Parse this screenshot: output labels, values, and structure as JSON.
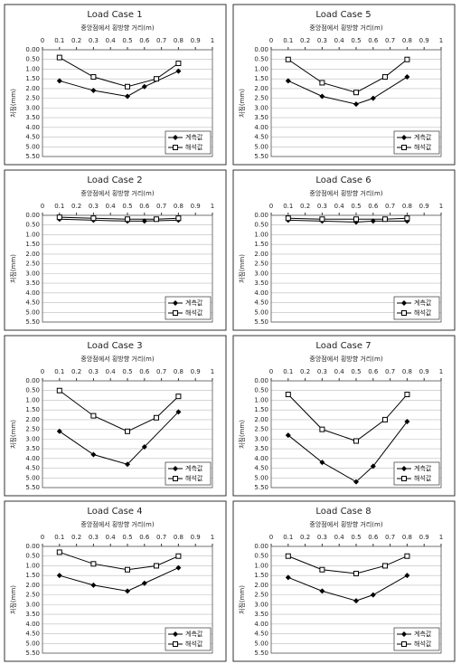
{
  "chart_data": [
    {
      "type": "line",
      "title": "Load Case 1",
      "x_label": "중앙점에서 횡방향 거리(m)",
      "y_label": "처짐(mm)",
      "xlim": [
        0,
        1
      ],
      "xticks": [
        0,
        0.1,
        0.2,
        0.3,
        0.4,
        0.5,
        0.6,
        0.7,
        0.8,
        0.9,
        1
      ],
      "ylim": [
        0,
        5.5
      ],
      "y_inverted": true,
      "grid": true,
      "legend": "lower right",
      "yticks": [
        {
          "value": 0,
          "label": "0.00"
        },
        {
          "value": 0.5,
          "label": "0.50"
        },
        {
          "value": 1,
          "label": "1.00"
        },
        {
          "value": 1.5,
          "label": "1.50"
        },
        {
          "value": 2,
          "label": "2.00"
        },
        {
          "value": 2.5,
          "label": "2.50"
        },
        {
          "value": 3,
          "label": "3.00"
        },
        {
          "value": 3.5,
          "label": "3.50"
        },
        {
          "value": 4,
          "label": "4.00"
        },
        {
          "value": 4.5,
          "label": "4.50"
        },
        {
          "value": 5,
          "label": "5.00"
        },
        {
          "value": 5.5,
          "label": "5.50"
        }
      ],
      "series": [
        {
          "name": "계측값",
          "color": "#000000",
          "marker": "diamond",
          "x": [
            0.1,
            0.3,
            0.5,
            0.6,
            0.8
          ],
          "values": [
            1.6,
            2.1,
            2.4,
            1.9,
            1.1
          ]
        },
        {
          "name": "해석값",
          "color": "#000000",
          "marker": "square",
          "x": [
            0.1,
            0.3,
            0.5,
            0.67,
            0.8
          ],
          "values": [
            0.4,
            1.4,
            1.9,
            1.5,
            0.7
          ]
        }
      ]
    },
    {
      "type": "line",
      "title": "Load Case 5",
      "x_label": "중앙점에서 횡방향 거리(m)",
      "y_label": "처짐(mm)",
      "xlim": [
        0,
        1
      ],
      "xticks": [
        0,
        0.1,
        0.2,
        0.3,
        0.4,
        0.5,
        0.6,
        0.7,
        0.8,
        0.9,
        1
      ],
      "ylim": [
        0,
        5.5
      ],
      "y_inverted": true,
      "grid": true,
      "legend": "lower right",
      "yticks": [
        {
          "value": 0,
          "label": "0.00"
        },
        {
          "value": 0.5,
          "label": "0.50"
        },
        {
          "value": 1,
          "label": "1.00"
        },
        {
          "value": 1.5,
          "label": "1.50"
        },
        {
          "value": 2,
          "label": "2.00"
        },
        {
          "value": 2.5,
          "label": "2.50"
        },
        {
          "value": 3,
          "label": "3.00"
        },
        {
          "value": 3.5,
          "label": "3.50"
        },
        {
          "value": 4,
          "label": "4.00"
        },
        {
          "value": 4.5,
          "label": "4.50"
        },
        {
          "value": 5,
          "label": "5.00"
        },
        {
          "value": 5.5,
          "label": "5.50"
        }
      ],
      "series": [
        {
          "name": "계측값",
          "color": "#000000",
          "marker": "diamond",
          "x": [
            0.1,
            0.3,
            0.5,
            0.6,
            0.8
          ],
          "values": [
            1.6,
            2.4,
            2.8,
            2.5,
            1.4
          ]
        },
        {
          "name": "해석값",
          "color": "#000000",
          "marker": "square",
          "x": [
            0.1,
            0.3,
            0.5,
            0.67,
            0.8
          ],
          "values": [
            0.5,
            1.7,
            2.2,
            1.4,
            0.5
          ]
        }
      ]
    },
    {
      "type": "line",
      "title": "Load Case 2",
      "x_label": "중앙점에서 횡방향 거리(m)",
      "y_label": "처짐(mm)",
      "xlim": [
        0,
        1
      ],
      "xticks": [
        0,
        0.1,
        0.2,
        0.3,
        0.4,
        0.5,
        0.6,
        0.7,
        0.8,
        0.9,
        1
      ],
      "ylim": [
        0,
        5.5
      ],
      "y_inverted": true,
      "grid": true,
      "legend": "lower right",
      "yticks": [
        {
          "value": 0,
          "label": "0.00"
        },
        {
          "value": 0.5,
          "label": "0.50"
        },
        {
          "value": 1,
          "label": "1.00"
        },
        {
          "value": 1.5,
          "label": "1.50"
        },
        {
          "value": 2,
          "label": "2.00"
        },
        {
          "value": 2.5,
          "label": "2.50"
        },
        {
          "value": 3,
          "label": "3.00"
        },
        {
          "value": 3.5,
          "label": "3.50"
        },
        {
          "value": 4,
          "label": "4.00"
        },
        {
          "value": 4.5,
          "label": "4.50"
        },
        {
          "value": 5,
          "label": "5.00"
        },
        {
          "value": 5.5,
          "label": "5.50"
        }
      ],
      "series": [
        {
          "name": "계측값",
          "color": "#000000",
          "marker": "diamond",
          "x": [
            0.1,
            0.3,
            0.5,
            0.6,
            0.8
          ],
          "values": [
            0.2,
            0.25,
            0.3,
            0.3,
            0.25
          ]
        },
        {
          "name": "해석값",
          "color": "#000000",
          "marker": "square",
          "x": [
            0.1,
            0.3,
            0.5,
            0.67,
            0.8
          ],
          "values": [
            0.1,
            0.15,
            0.2,
            0.2,
            0.15
          ]
        }
      ]
    },
    {
      "type": "line",
      "title": "Load Case 6",
      "x_label": "중앙점에서 횡방향 거리(m)",
      "y_label": "처짐(mm)",
      "xlim": [
        0,
        1
      ],
      "xticks": [
        0,
        0.1,
        0.2,
        0.3,
        0.4,
        0.5,
        0.6,
        0.7,
        0.8,
        0.9,
        1
      ],
      "ylim": [
        0,
        5.5
      ],
      "y_inverted": true,
      "grid": true,
      "legend": "lower right",
      "yticks": [
        {
          "value": 0,
          "label": "0.00"
        },
        {
          "value": 0.5,
          "label": "0.50"
        },
        {
          "value": 1,
          "label": "1.00"
        },
        {
          "value": 1.5,
          "label": "1.50"
        },
        {
          "value": 2,
          "label": "2.00"
        },
        {
          "value": 2.5,
          "label": "2.50"
        },
        {
          "value": 3,
          "label": "3.00"
        },
        {
          "value": 3.5,
          "label": "3.50"
        },
        {
          "value": 4,
          "label": "4.00"
        },
        {
          "value": 4.5,
          "label": "4.50"
        },
        {
          "value": 5,
          "label": "5.00"
        },
        {
          "value": 5.5,
          "label": "5.50"
        }
      ],
      "series": [
        {
          "name": "계측값",
          "color": "#000000",
          "marker": "diamond",
          "x": [
            0.1,
            0.3,
            0.5,
            0.6,
            0.8
          ],
          "values": [
            0.25,
            0.3,
            0.35,
            0.3,
            0.3
          ]
        },
        {
          "name": "해석값",
          "color": "#000000",
          "marker": "square",
          "x": [
            0.1,
            0.3,
            0.5,
            0.67,
            0.8
          ],
          "values": [
            0.15,
            0.2,
            0.2,
            0.2,
            0.15
          ]
        }
      ]
    },
    {
      "type": "line",
      "title": "Load Case 3",
      "x_label": "중앙점에서 횡방향 거리(m)",
      "y_label": "처짐(mm)",
      "xlim": [
        0,
        1
      ],
      "xticks": [
        0,
        0.1,
        0.2,
        0.3,
        0.4,
        0.5,
        0.6,
        0.7,
        0.8,
        0.9,
        1
      ],
      "ylim": [
        0,
        5.5
      ],
      "y_inverted": true,
      "grid": true,
      "legend": "lower right",
      "yticks": [
        {
          "value": 0,
          "label": "0.00"
        },
        {
          "value": 0.5,
          "label": "0.50"
        },
        {
          "value": 1,
          "label": "1.00"
        },
        {
          "value": 1.5,
          "label": "1.50"
        },
        {
          "value": 2,
          "label": "2.00"
        },
        {
          "value": 2.5,
          "label": "2.50"
        },
        {
          "value": 3,
          "label": "3.00"
        },
        {
          "value": 3.5,
          "label": "3.50"
        },
        {
          "value": 4,
          "label": "4.00"
        },
        {
          "value": 4.5,
          "label": "4.50"
        },
        {
          "value": 5,
          "label": "5.00"
        },
        {
          "value": 5.5,
          "label": "5.50"
        }
      ],
      "series": [
        {
          "name": "계측값",
          "color": "#000000",
          "marker": "diamond",
          "x": [
            0.1,
            0.3,
            0.5,
            0.6,
            0.8
          ],
          "values": [
            2.6,
            3.8,
            4.3,
            3.4,
            1.6
          ]
        },
        {
          "name": "해석값",
          "color": "#000000",
          "marker": "square",
          "x": [
            0.1,
            0.3,
            0.5,
            0.67,
            0.8
          ],
          "values": [
            0.5,
            1.8,
            2.6,
            1.9,
            0.8
          ]
        }
      ]
    },
    {
      "type": "line",
      "title": "Load Case 7",
      "x_label": "중앙점에서 횡방향 거리(m)",
      "y_label": "처짐(mm)",
      "xlim": [
        0,
        1
      ],
      "xticks": [
        0,
        0.1,
        0.2,
        0.3,
        0.4,
        0.5,
        0.6,
        0.7,
        0.8,
        0.9,
        1
      ],
      "ylim": [
        0,
        5.5
      ],
      "y_inverted": true,
      "grid": true,
      "legend": "lower right",
      "yticks": [
        {
          "value": 0,
          "label": "0.00"
        },
        {
          "value": 0.5,
          "label": "0.50"
        },
        {
          "value": 1,
          "label": "1.00"
        },
        {
          "value": 1.5,
          "label": "1.50"
        },
        {
          "value": 2,
          "label": "2.00"
        },
        {
          "value": 2.5,
          "label": "2.50"
        },
        {
          "value": 3,
          "label": "3.00"
        },
        {
          "value": 3.5,
          "label": "3.50"
        },
        {
          "value": 4,
          "label": "4.00"
        },
        {
          "value": 4.5,
          "label": "4.50"
        },
        {
          "value": 5,
          "label": "5.00"
        },
        {
          "value": 5.5,
          "label": "5.50"
        }
      ],
      "series": [
        {
          "name": "계측값",
          "color": "#000000",
          "marker": "diamond",
          "x": [
            0.1,
            0.3,
            0.5,
            0.6,
            0.8
          ],
          "values": [
            2.8,
            4.2,
            5.2,
            4.4,
            2.1
          ]
        },
        {
          "name": "해석값",
          "color": "#000000",
          "marker": "square",
          "x": [
            0.1,
            0.3,
            0.5,
            0.67,
            0.8
          ],
          "values": [
            0.7,
            2.5,
            3.1,
            2.0,
            0.7
          ]
        }
      ]
    },
    {
      "type": "line",
      "title": "Load Case 4",
      "x_label": "중앙점에서 횡방향 거리(m)",
      "y_label": "처짐(mm)",
      "xlim": [
        0,
        1
      ],
      "xticks": [
        0,
        0.1,
        0.2,
        0.3,
        0.4,
        0.5,
        0.6,
        0.7,
        0.8,
        0.9,
        1
      ],
      "ylim": [
        0,
        5.5
      ],
      "y_inverted": true,
      "grid": true,
      "legend": "lower right",
      "yticks": [
        {
          "value": 0,
          "label": "0.00"
        },
        {
          "value": 0.5,
          "label": "0.50"
        },
        {
          "value": 1,
          "label": "1.00"
        },
        {
          "value": 1.5,
          "label": "1.50"
        },
        {
          "value": 2,
          "label": "2.00"
        },
        {
          "value": 2.5,
          "label": "2.50"
        },
        {
          "value": 3,
          "label": "3.00"
        },
        {
          "value": 3.5,
          "label": "3.50"
        },
        {
          "value": 4,
          "label": "4.00"
        },
        {
          "value": 4.5,
          "label": "4.50"
        },
        {
          "value": 5,
          "label": "5.00"
        },
        {
          "value": 5.5,
          "label": "5.50"
        }
      ],
      "series": [
        {
          "name": "계측값",
          "color": "#000000",
          "marker": "diamond",
          "x": [
            0.1,
            0.3,
            0.5,
            0.6,
            0.8
          ],
          "values": [
            1.5,
            2.0,
            2.3,
            1.9,
            1.1
          ]
        },
        {
          "name": "해석값",
          "color": "#000000",
          "marker": "square",
          "x": [
            0.1,
            0.3,
            0.5,
            0.67,
            0.8
          ],
          "values": [
            0.3,
            0.9,
            1.2,
            1.0,
            0.5
          ]
        }
      ]
    },
    {
      "type": "line",
      "title": "Load Case 8",
      "x_label": "중앙점에서 횡방향 거리(m)",
      "y_label": "처짐(mm)",
      "xlim": [
        0,
        1
      ],
      "xticks": [
        0,
        0.1,
        0.2,
        0.3,
        0.4,
        0.5,
        0.6,
        0.7,
        0.8,
        0.9,
        1
      ],
      "ylim": [
        0,
        5.5
      ],
      "y_inverted": true,
      "grid": true,
      "legend": "lower right",
      "yticks": [
        {
          "value": 0,
          "label": "0.00"
        },
        {
          "value": 0.5,
          "label": "0.50"
        },
        {
          "value": 1,
          "label": "1.00"
        },
        {
          "value": 1.5,
          "label": "1.50"
        },
        {
          "value": 2,
          "label": "2.00"
        },
        {
          "value": 2.5,
          "label": "2.50"
        },
        {
          "value": 3,
          "label": "3.00"
        },
        {
          "value": 3.5,
          "label": "3.50"
        },
        {
          "value": 4,
          "label": "4.00"
        },
        {
          "value": 4.5,
          "label": "4.50"
        },
        {
          "value": 5,
          "label": "5.00"
        },
        {
          "value": 5.5,
          "label": "5.50"
        }
      ],
      "series": [
        {
          "name": "계측값",
          "color": "#000000",
          "marker": "diamond",
          "x": [
            0.1,
            0.3,
            0.5,
            0.6,
            0.8
          ],
          "values": [
            1.6,
            2.3,
            2.8,
            2.5,
            1.5
          ]
        },
        {
          "name": "해석값",
          "color": "#000000",
          "marker": "square",
          "x": [
            0.1,
            0.3,
            0.5,
            0.67,
            0.8
          ],
          "values": [
            0.5,
            1.2,
            1.4,
            1.0,
            0.5
          ]
        }
      ]
    }
  ]
}
